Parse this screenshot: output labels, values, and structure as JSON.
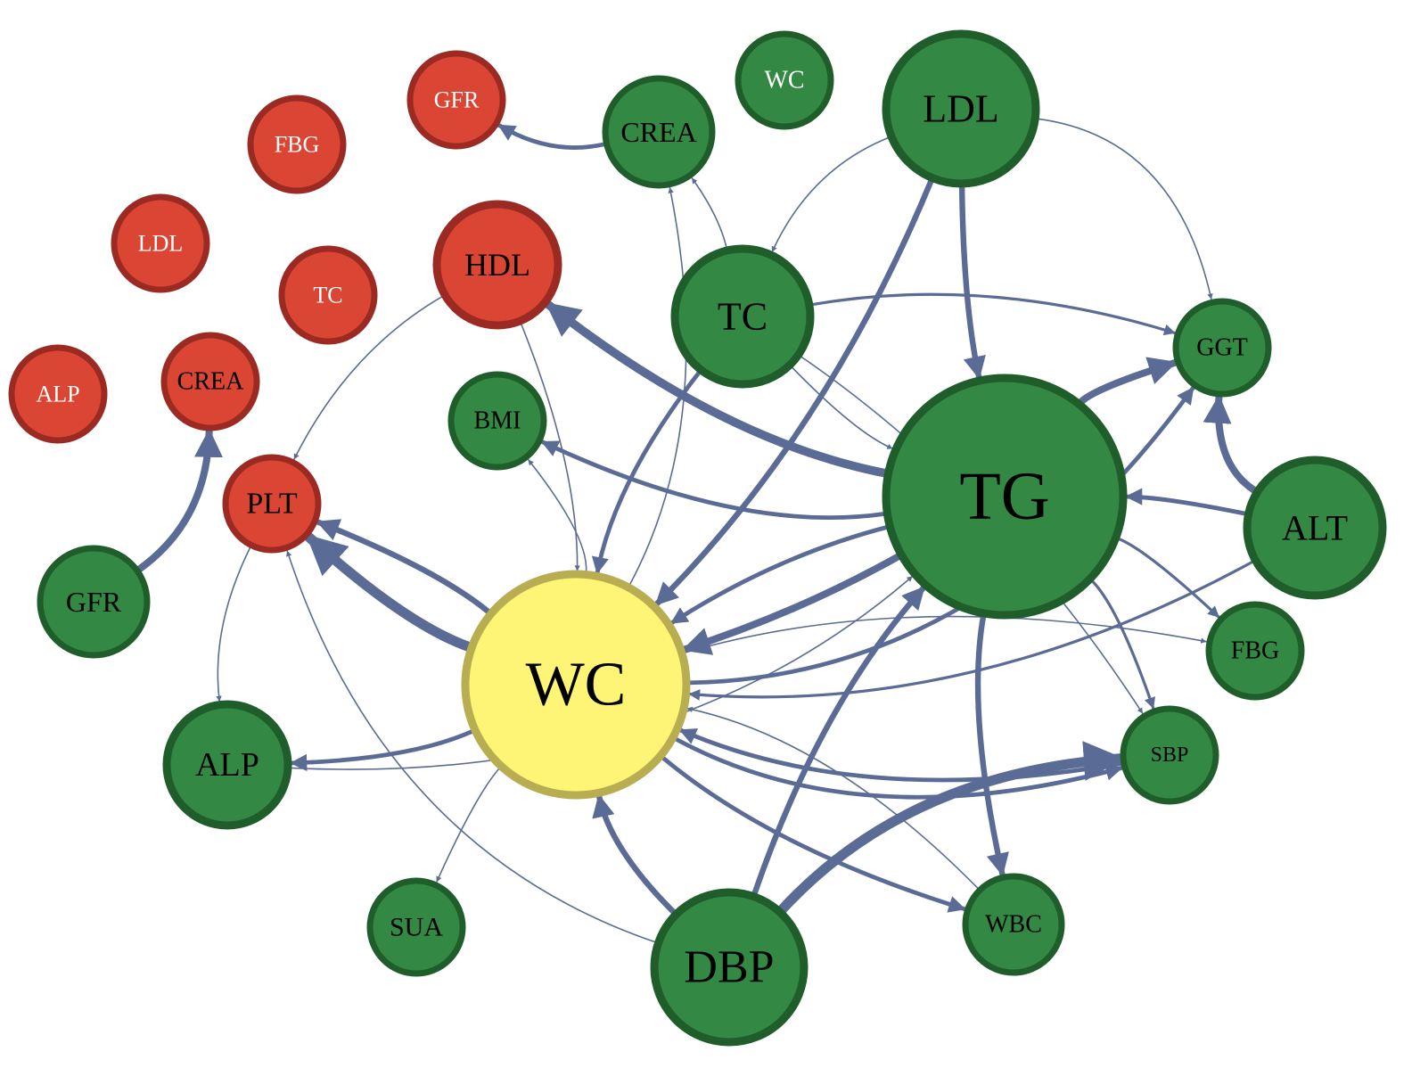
{
  "colors": {
    "edge": "#5a6b96",
    "green_fill": "#338843",
    "green_stroke": "#1f5e2b",
    "red_fill": "#db4634",
    "red_stroke": "#9b2b22",
    "yellow_fill": "#fef475",
    "yellow_stroke": "#b9ad52"
  },
  "nodes": [
    {
      "id": "r_gfr",
      "label": "GFR",
      "color": "red"
    },
    {
      "id": "r_fbg",
      "label": "FBG",
      "color": "red"
    },
    {
      "id": "r_ldl",
      "label": "LDL",
      "color": "red"
    },
    {
      "id": "r_tc",
      "label": "TC",
      "color": "red"
    },
    {
      "id": "r_hdl",
      "label": "HDL",
      "color": "red"
    },
    {
      "id": "r_alp",
      "label": "ALP",
      "color": "red"
    },
    {
      "id": "r_crea",
      "label": "CREA",
      "color": "red"
    },
    {
      "id": "r_plt",
      "label": "PLT",
      "color": "red"
    },
    {
      "id": "g_wc2",
      "label": "WC",
      "color": "green"
    },
    {
      "id": "g_crea",
      "label": "CREA",
      "color": "green"
    },
    {
      "id": "g_ldl",
      "label": "LDL",
      "color": "green"
    },
    {
      "id": "g_tc",
      "label": "TC",
      "color": "green"
    },
    {
      "id": "g_ggt",
      "label": "GGT",
      "color": "green"
    },
    {
      "id": "g_bmi",
      "label": "BMI",
      "color": "green"
    },
    {
      "id": "g_tg",
      "label": "TG",
      "color": "green"
    },
    {
      "id": "g_alt",
      "label": "ALT",
      "color": "green"
    },
    {
      "id": "g_gfr",
      "label": "GFR",
      "color": "green"
    },
    {
      "id": "g_fbg",
      "label": "FBG",
      "color": "green"
    },
    {
      "id": "g_sbp",
      "label": "SBP",
      "color": "green"
    },
    {
      "id": "g_alp",
      "label": "ALP",
      "color": "green"
    },
    {
      "id": "g_sua",
      "label": "SUA",
      "color": "green"
    },
    {
      "id": "g_wbc",
      "label": "WBC",
      "color": "green"
    },
    {
      "id": "g_dbp",
      "label": "DBP",
      "color": "green"
    },
    {
      "id": "y_wc",
      "label": "WC",
      "color": "yellow"
    }
  ],
  "edges": [
    {
      "from": "g_gfr",
      "to": "r_crea",
      "weight": 5
    },
    {
      "from": "g_crea",
      "to": "r_gfr",
      "weight": 3
    },
    {
      "from": "r_hdl",
      "to": "r_plt",
      "weight": 1
    },
    {
      "from": "g_tg",
      "to": "r_hdl",
      "weight": 6
    },
    {
      "from": "y_wc",
      "to": "r_plt",
      "weight": 7
    },
    {
      "from": "y_wc",
      "to": "r_plt",
      "weight": 4
    },
    {
      "from": "r_plt",
      "to": "g_alp",
      "weight": 1
    },
    {
      "from": "g_dbp",
      "to": "r_plt",
      "weight": 1
    },
    {
      "from": "g_tc",
      "to": "g_crea",
      "weight": 1
    },
    {
      "from": "y_wc",
      "to": "g_crea",
      "weight": 1
    },
    {
      "from": "r_hdl",
      "to": "y_wc",
      "weight": 1
    },
    {
      "from": "y_wc",
      "to": "g_bmi",
      "weight": 1
    },
    {
      "from": "g_tg",
      "to": "g_bmi",
      "weight": 3
    },
    {
      "from": "g_ldl",
      "to": "g_tc",
      "weight": 1
    },
    {
      "from": "g_ldl",
      "to": "g_ggt",
      "weight": 1
    },
    {
      "from": "g_ldl",
      "to": "g_tg",
      "weight": 4
    },
    {
      "from": "g_ldl",
      "to": "y_wc",
      "weight": 4
    },
    {
      "from": "g_tc",
      "to": "g_ggt",
      "weight": 2
    },
    {
      "from": "g_tc",
      "to": "g_tg",
      "weight": 1
    },
    {
      "from": "g_tc",
      "to": "y_wc",
      "weight": 3
    },
    {
      "from": "g_tc",
      "to": "g_sbp",
      "weight": 1
    },
    {
      "from": "y_wc",
      "to": "g_ggt",
      "weight": 3
    },
    {
      "from": "g_tg",
      "to": "g_ggt",
      "weight": 5
    },
    {
      "from": "g_alt",
      "to": "g_ggt",
      "weight": 5
    },
    {
      "from": "g_alt",
      "to": "g_tg",
      "weight": 3
    },
    {
      "from": "g_alt",
      "to": "y_wc",
      "weight": 2
    },
    {
      "from": "g_tg",
      "to": "y_wc",
      "weight": 5
    },
    {
      "from": "g_tg",
      "to": "y_wc",
      "weight": 3
    },
    {
      "from": "g_tg",
      "to": "g_fbg",
      "weight": 2
    },
    {
      "from": "g_tg",
      "to": "g_sbp",
      "weight": 2
    },
    {
      "from": "g_tg",
      "to": "g_wbc",
      "weight": 4
    },
    {
      "from": "y_wc",
      "to": "g_sbp",
      "weight": 3
    },
    {
      "from": "y_wc",
      "to": "g_fbg",
      "weight": 1
    },
    {
      "from": "y_wc",
      "to": "g_wbc",
      "weight": 3
    },
    {
      "from": "y_wc",
      "to": "g_alp",
      "weight": 3
    },
    {
      "from": "g_alp",
      "to": "g_tg",
      "weight": 1
    },
    {
      "from": "y_wc",
      "to": "g_sua",
      "weight": 1
    },
    {
      "from": "g_dbp",
      "to": "y_wc",
      "weight": 4
    },
    {
      "from": "g_dbp",
      "to": "g_sbp",
      "weight": 7
    },
    {
      "from": "g_dbp",
      "to": "g_tg",
      "weight": 4
    },
    {
      "from": "g_sbp",
      "to": "y_wc",
      "weight": 3
    },
    {
      "from": "g_wbc",
      "to": "y_wc",
      "weight": 1
    }
  ]
}
